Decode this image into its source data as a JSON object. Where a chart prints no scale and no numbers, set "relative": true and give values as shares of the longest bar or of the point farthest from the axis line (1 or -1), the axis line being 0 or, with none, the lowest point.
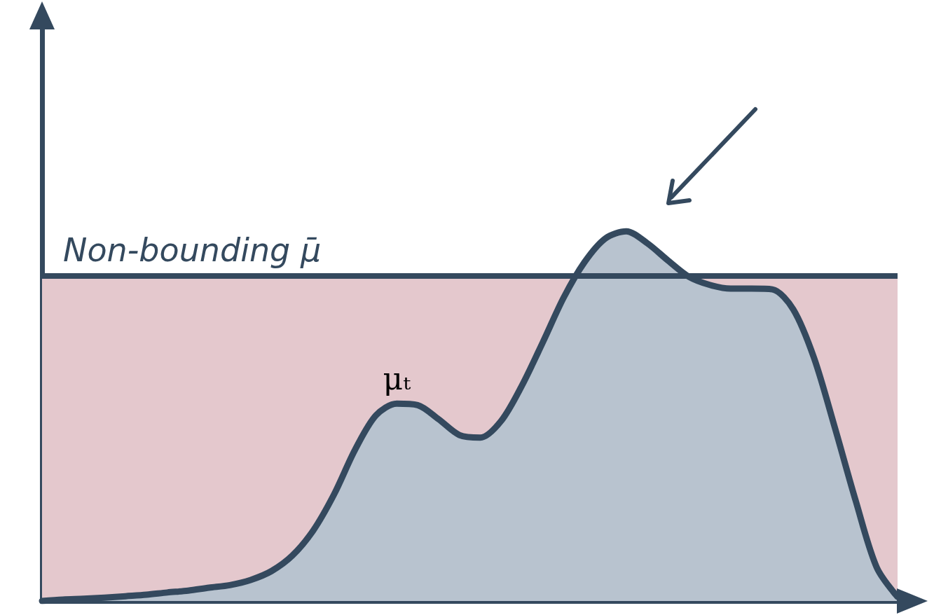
{
  "chart_data": {
    "type": "area",
    "relative": true,
    "grid": false,
    "legend": false,
    "categories": [
      null,
      null,
      null,
      null,
      null,
      null,
      null,
      null,
      null,
      null,
      null,
      null,
      null,
      null,
      null,
      null,
      null,
      null,
      null,
      null,
      null,
      null,
      null,
      null,
      null,
      null,
      null,
      null,
      null,
      null,
      null,
      null,
      null,
      null,
      null,
      null,
      null,
      null,
      null,
      null,
      null,
      null
    ],
    "series": [
      {
        "name": "μₜ",
        "color": "#34495e",
        "values": [
          0,
          0.004,
          0.006,
          0.009,
          0.013,
          0.017,
          0.023,
          0.028,
          0.036,
          0.043,
          0.057,
          0.081,
          0.123,
          0.191,
          0.289,
          0.409,
          0.502,
          0.534,
          0.53,
          0.492,
          0.449,
          0.442,
          0.487,
          0.583,
          0.7,
          0.821,
          0.917,
          0.981,
          1,
          0.968,
          0.921,
          0.877,
          0.855,
          0.845,
          0.845,
          0.843,
          0.789,
          0.657,
          0.468,
          0.27,
          0.091,
          0.011
        ]
      }
    ],
    "ref_lines": [
      {
        "axis": "y",
        "value": 0.883,
        "label": "Non-bounding μ̄",
        "color": "#34495e"
      }
    ],
    "bands": [
      {
        "axis": "y",
        "from": 0,
        "to": 0.883,
        "color": "#e4c8cd"
      }
    ]
  }
}
